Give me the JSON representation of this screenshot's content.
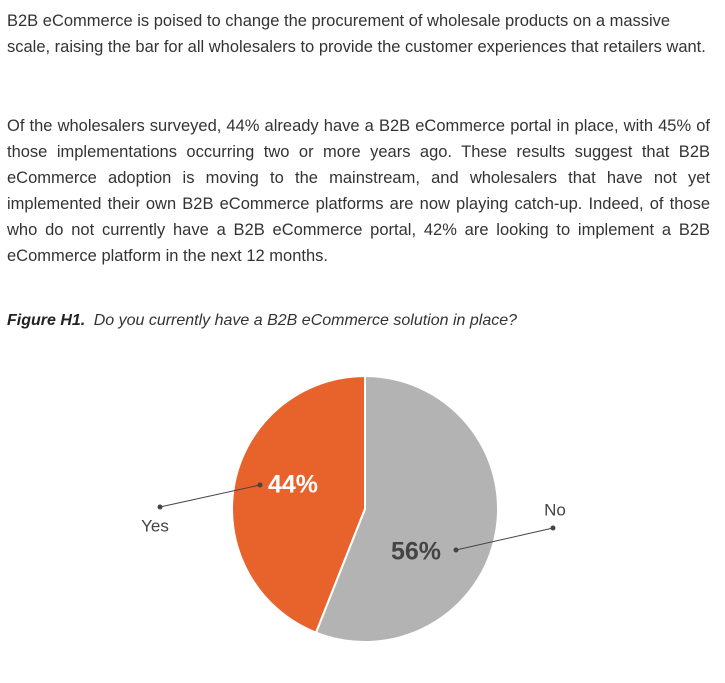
{
  "paragraphs": [
    "B2B eCommerce is poised to change the procurement of wholesale products on a massive scale, raising the bar for all wholesalers to provide the customer experiences that retailers want.",
    "Of the wholesalers surveyed, 44% already have a B2B eCommerce portal in place, with 45% of those implementations occurring two or more years ago. These results suggest that B2B eCommerce adoption is moving to the mainstream, and wholesalers that have not yet implemented their own B2B eCommerce platforms are now playing catch-up. Indeed, of those who do not currently have a B2B eCommerce portal, 42% are looking to implement a B2B eCommerce platform in the next 12 months."
  ],
  "figure": {
    "label": "Figure H1.",
    "caption": "Do you currently have a B2B eCommerce solution in place?"
  },
  "chart_data": {
    "type": "pie",
    "categories": [
      "Yes",
      "No"
    ],
    "values": [
      44,
      56
    ],
    "value_labels": [
      "44%",
      "56%"
    ],
    "colors": [
      "#e8622c",
      "#b3b3b3"
    ]
  }
}
